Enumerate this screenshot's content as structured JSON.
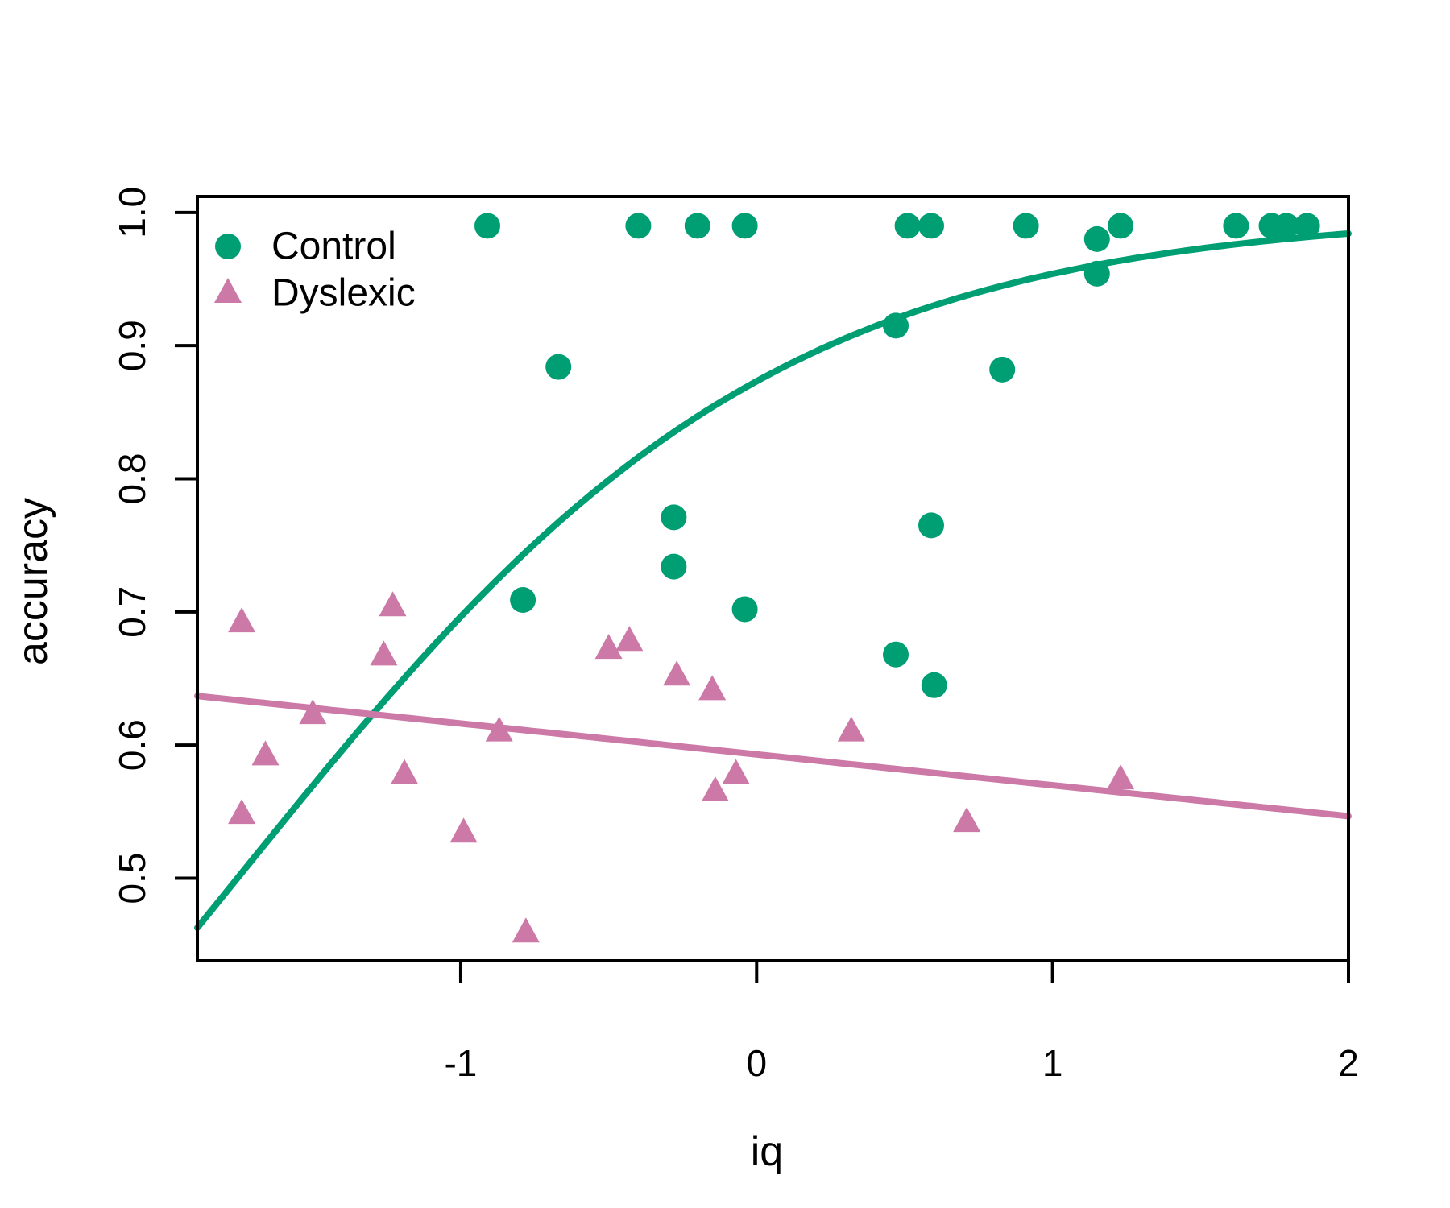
{
  "figure": {
    "background": "#ffffff",
    "text_color": "#000000"
  },
  "chart_data": {
    "type": "scatter",
    "xlabel": "iq",
    "ylabel": "accuracy",
    "xlim": [
      -1.89,
      2.0
    ],
    "ylim": [
      0.438,
      1.012
    ],
    "x_ticks": [
      -1,
      0,
      1,
      2
    ],
    "x_tick_labels": [
      "-1",
      "0",
      "1",
      "2"
    ],
    "y_ticks": [
      0.5,
      0.6,
      0.7,
      0.8,
      0.9,
      1.0
    ],
    "y_tick_labels": [
      "0.5",
      "0.6",
      "0.7",
      "0.8",
      "0.9",
      "1.0"
    ],
    "grid": false,
    "legend_position": "top-left",
    "series": [
      {
        "name": "Control",
        "marker": "circle",
        "color": "#009E73",
        "points": [
          [
            -0.91,
            0.99
          ],
          [
            -0.4,
            0.99
          ],
          [
            -0.2,
            0.99
          ],
          [
            -0.04,
            0.99
          ],
          [
            0.51,
            0.99
          ],
          [
            0.59,
            0.99
          ],
          [
            0.91,
            0.99
          ],
          [
            1.23,
            0.99
          ],
          [
            1.62,
            0.99
          ],
          [
            1.74,
            0.99
          ],
          [
            1.79,
            0.99
          ],
          [
            1.86,
            0.99
          ],
          [
            1.15,
            0.98
          ],
          [
            1.15,
            0.954
          ],
          [
            0.47,
            0.915
          ],
          [
            -0.67,
            0.884
          ],
          [
            0.83,
            0.882
          ],
          [
            -0.28,
            0.771
          ],
          [
            0.59,
            0.765
          ],
          [
            -0.28,
            0.734
          ],
          [
            -0.79,
            0.709
          ],
          [
            -0.04,
            0.702
          ],
          [
            0.47,
            0.668
          ],
          [
            0.6,
            0.645
          ]
        ]
      },
      {
        "name": "Dyslexic",
        "marker": "triangle",
        "color": "#CC79A7",
        "points": [
          [
            -1.74,
            0.692
          ],
          [
            -1.26,
            0.667
          ],
          [
            -1.23,
            0.704
          ],
          [
            -1.5,
            0.623
          ],
          [
            -1.66,
            0.592
          ],
          [
            -1.19,
            0.578
          ],
          [
            -1.74,
            0.548
          ],
          [
            -0.99,
            0.534
          ],
          [
            -0.87,
            0.61
          ],
          [
            -0.78,
            0.459
          ],
          [
            -0.5,
            0.672
          ],
          [
            -0.43,
            0.678
          ],
          [
            -0.27,
            0.652
          ],
          [
            -0.15,
            0.641
          ],
          [
            -0.14,
            0.565
          ],
          [
            -0.07,
            0.578
          ],
          [
            0.32,
            0.61
          ],
          [
            0.71,
            0.542
          ],
          [
            1.23,
            0.574
          ]
        ]
      }
    ],
    "fits": [
      {
        "series": "Control",
        "model": "logistic",
        "intercept": 1.93,
        "slope": 1.1,
        "color": "#009E73"
      },
      {
        "series": "Dyslexic",
        "model": "linear",
        "intercept": 0.593,
        "slope": -0.0232,
        "color": "#CC79A7"
      }
    ]
  }
}
